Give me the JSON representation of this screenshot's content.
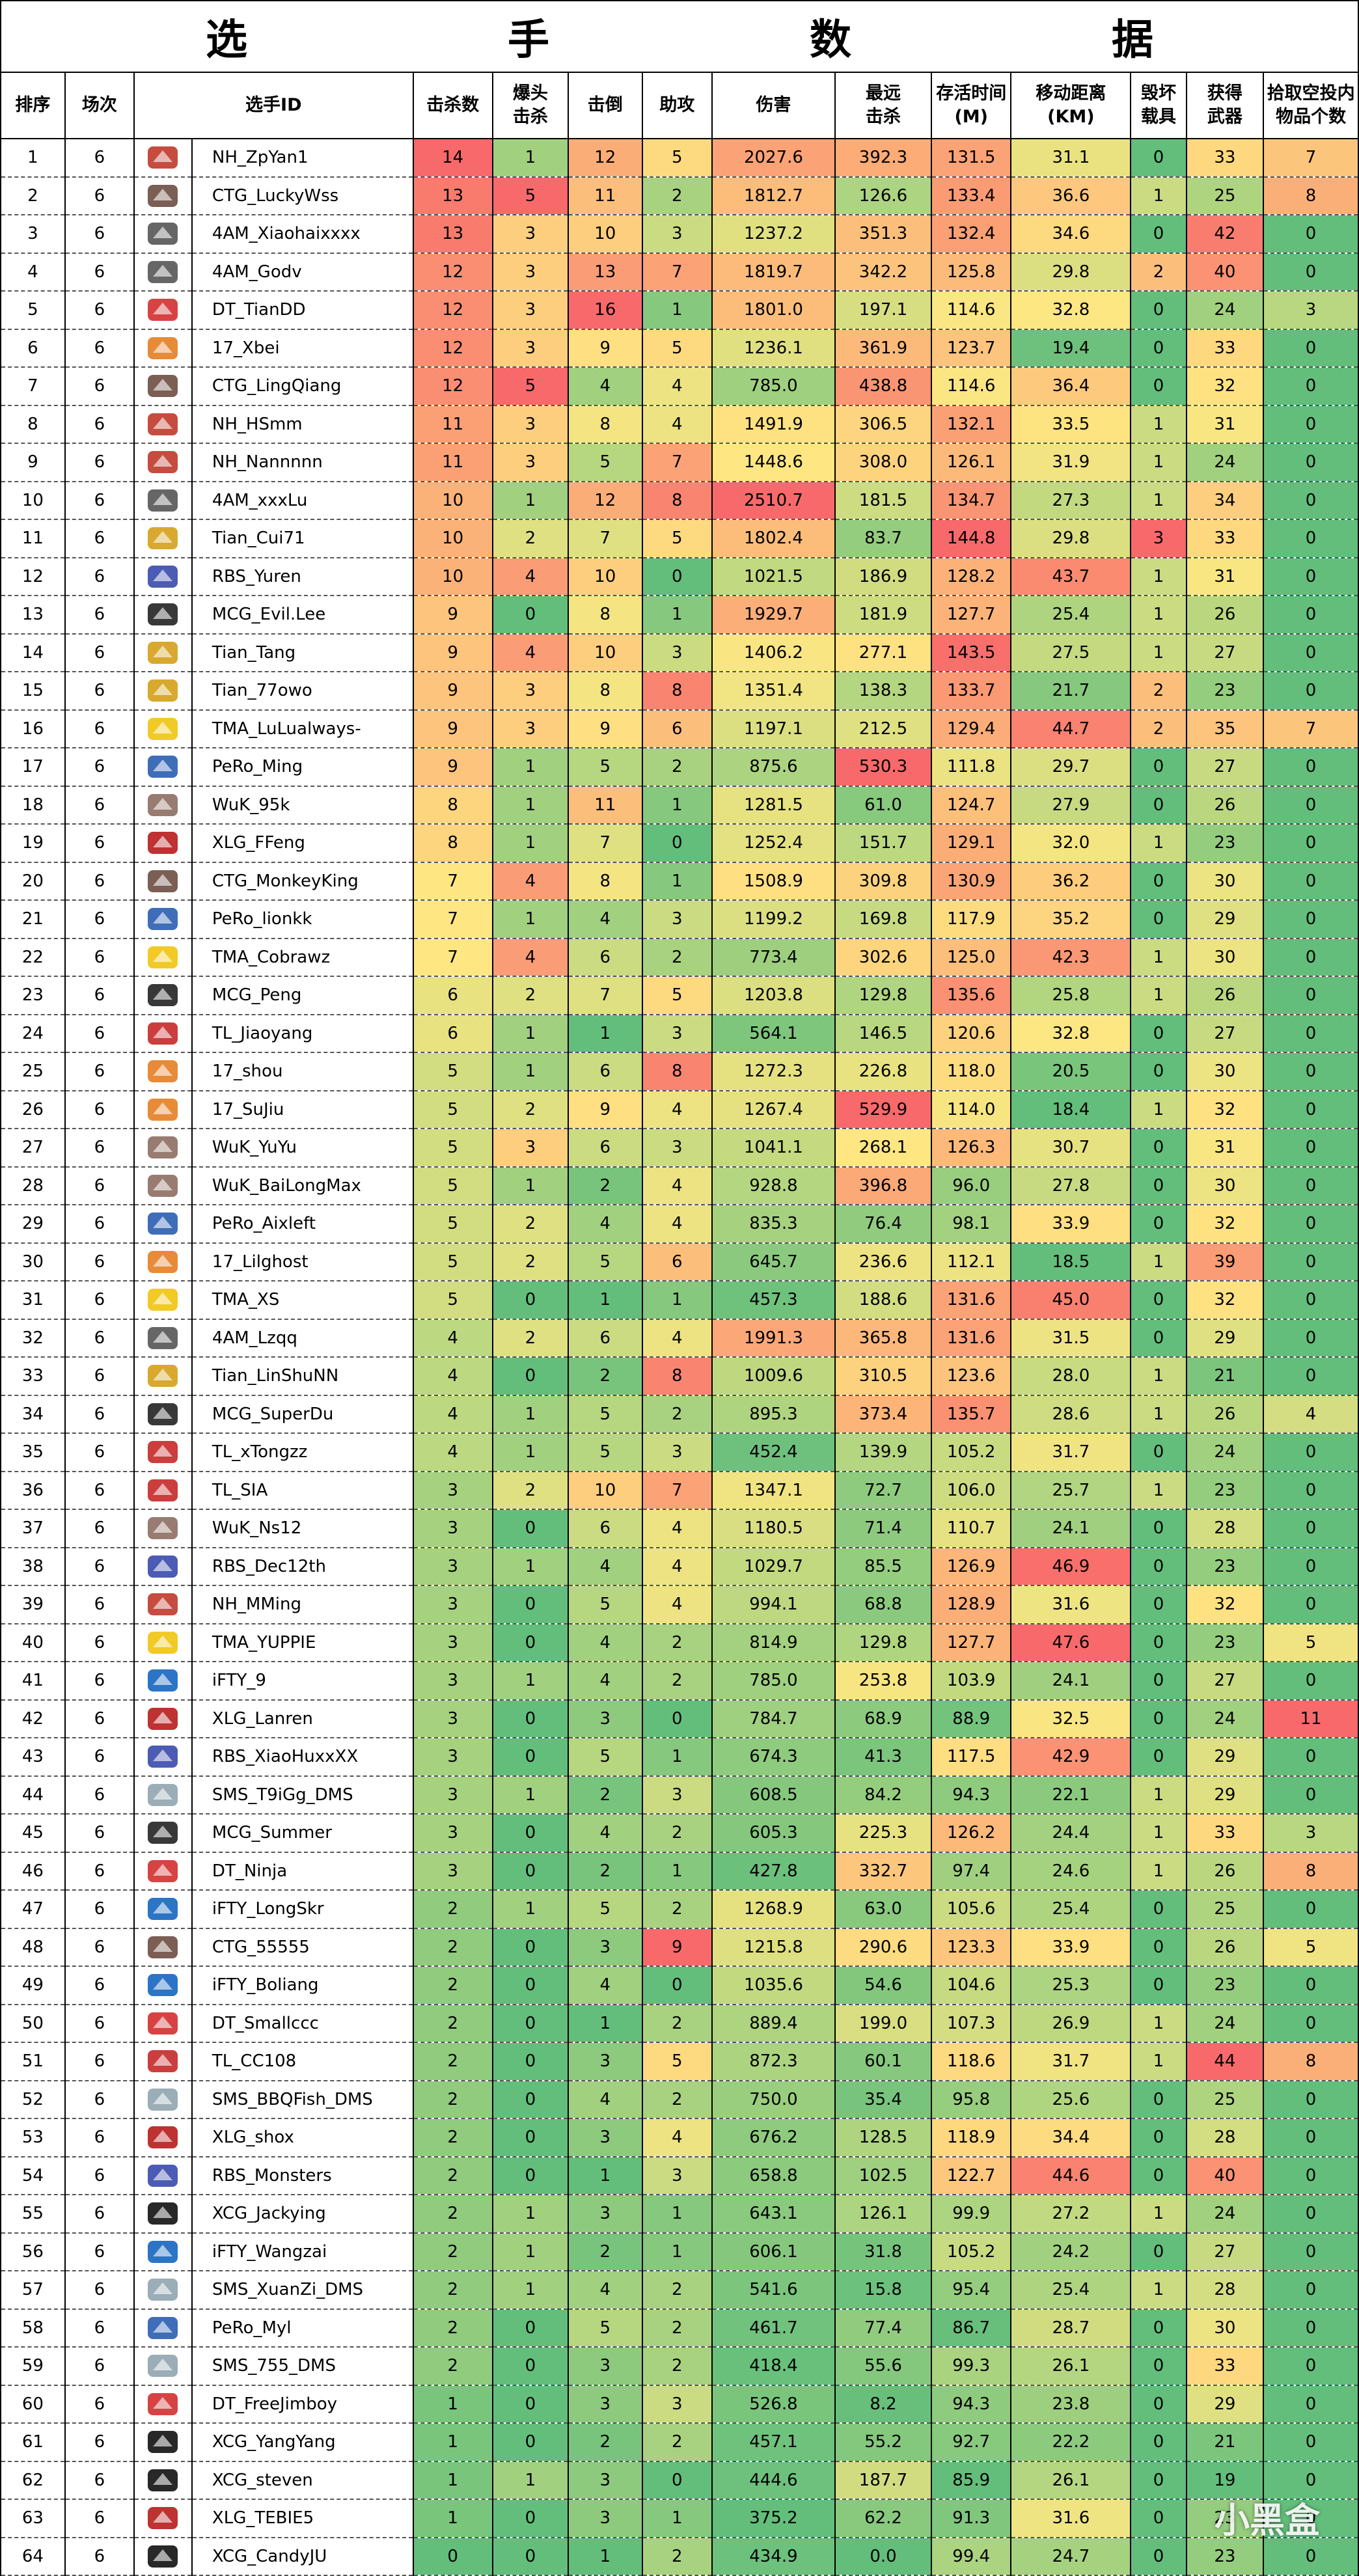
{
  "title": [
    "选",
    "手",
    "数",
    "据"
  ],
  "headers": [
    "排序",
    "场次",
    "选手ID",
    "击杀数",
    "爆头\n击杀",
    "击倒",
    "助攻",
    "伤害",
    "最远\n击杀",
    "存活时间\n(M)",
    "移动距离\n(KM)",
    "毁坏\n载具",
    "获得\n武器",
    "拾取空投内\n物品个数"
  ],
  "watermark": "小黑盒",
  "colors": {
    "red": "#f8696b",
    "orange": "#fba977",
    "yellow": "#fee782",
    "lgreen": "#b1d580",
    "green": "#63be7b"
  },
  "rows": [
    [
      "1",
      "6",
      "NH_ZpYan1",
      "14",
      "1",
      "12",
      "5",
      "2027.6",
      "392.3",
      "131.5",
      "31.1",
      "0",
      "33",
      "7"
    ],
    [
      "2",
      "6",
      "CTG_LuckyWss",
      "13",
      "5",
      "11",
      "2",
      "1812.7",
      "126.6",
      "133.4",
      "36.6",
      "1",
      "25",
      "8"
    ],
    [
      "3",
      "6",
      "4AM_Xiaohaixxxx",
      "13",
      "3",
      "10",
      "3",
      "1237.2",
      "351.3",
      "132.4",
      "34.6",
      "0",
      "42",
      "0"
    ],
    [
      "4",
      "6",
      "4AM_Godv",
      "12",
      "3",
      "13",
      "7",
      "1819.7",
      "342.2",
      "125.8",
      "29.8",
      "2",
      "40",
      "0"
    ],
    [
      "5",
      "6",
      "DT_TianDD",
      "12",
      "3",
      "16",
      "1",
      "1801.0",
      "197.1",
      "114.6",
      "32.8",
      "0",
      "24",
      "3"
    ],
    [
      "6",
      "6",
      "17_Xbei",
      "12",
      "3",
      "9",
      "5",
      "1236.1",
      "361.9",
      "123.7",
      "19.4",
      "0",
      "33",
      "0"
    ],
    [
      "7",
      "6",
      "CTG_LingQiang",
      "12",
      "5",
      "4",
      "4",
      "785.0",
      "438.8",
      "114.6",
      "36.4",
      "0",
      "32",
      "0"
    ],
    [
      "8",
      "6",
      "NH_HSmm",
      "11",
      "3",
      "8",
      "4",
      "1491.9",
      "306.5",
      "132.1",
      "33.5",
      "1",
      "31",
      "0"
    ],
    [
      "9",
      "6",
      "NH_Nannnnn",
      "11",
      "3",
      "5",
      "7",
      "1448.6",
      "308.0",
      "126.1",
      "31.9",
      "1",
      "24",
      "0"
    ],
    [
      "10",
      "6",
      "4AM_xxxLu",
      "10",
      "1",
      "12",
      "8",
      "2510.7",
      "181.5",
      "134.7",
      "27.3",
      "1",
      "34",
      "0"
    ],
    [
      "11",
      "6",
      "Tian_Cui71",
      "10",
      "2",
      "7",
      "5",
      "1802.4",
      "83.7",
      "144.8",
      "29.8",
      "3",
      "33",
      "0"
    ],
    [
      "12",
      "6",
      "RBS_Yuren",
      "10",
      "4",
      "10",
      "0",
      "1021.5",
      "186.9",
      "128.2",
      "43.7",
      "1",
      "31",
      "0"
    ],
    [
      "13",
      "6",
      "MCG_Evil.Lee",
      "9",
      "0",
      "8",
      "1",
      "1929.7",
      "181.9",
      "127.7",
      "25.4",
      "1",
      "26",
      "0"
    ],
    [
      "14",
      "6",
      "Tian_Tang",
      "9",
      "4",
      "10",
      "3",
      "1406.2",
      "277.1",
      "143.5",
      "27.5",
      "1",
      "27",
      "0"
    ],
    [
      "15",
      "6",
      "Tian_77owo",
      "9",
      "3",
      "8",
      "8",
      "1351.4",
      "138.3",
      "133.7",
      "21.7",
      "2",
      "23",
      "0"
    ],
    [
      "16",
      "6",
      "TMA_LuLualways-",
      "9",
      "3",
      "9",
      "6",
      "1197.1",
      "212.5",
      "129.4",
      "44.7",
      "2",
      "35",
      "7"
    ],
    [
      "17",
      "6",
      "PeRo_Ming",
      "9",
      "1",
      "5",
      "2",
      "875.6",
      "530.3",
      "111.8",
      "29.7",
      "0",
      "27",
      "0"
    ],
    [
      "18",
      "6",
      "WuK_95k",
      "8",
      "1",
      "11",
      "1",
      "1281.5",
      "61.0",
      "124.7",
      "27.9",
      "0",
      "26",
      "0"
    ],
    [
      "19",
      "6",
      "XLG_FFeng",
      "8",
      "1",
      "7",
      "0",
      "1252.4",
      "151.7",
      "129.1",
      "32.0",
      "1",
      "23",
      "0"
    ],
    [
      "20",
      "6",
      "CTG_MonkeyKing",
      "7",
      "4",
      "8",
      "1",
      "1508.9",
      "309.8",
      "130.9",
      "36.2",
      "0",
      "30",
      "0"
    ],
    [
      "21",
      "6",
      "PeRo_lionkk",
      "7",
      "1",
      "4",
      "3",
      "1199.2",
      "169.8",
      "117.9",
      "35.2",
      "0",
      "29",
      "0"
    ],
    [
      "22",
      "6",
      "TMA_Cobrawz",
      "7",
      "4",
      "6",
      "2",
      "773.4",
      "302.6",
      "125.0",
      "42.3",
      "1",
      "30",
      "0"
    ],
    [
      "23",
      "6",
      "MCG_Peng",
      "6",
      "2",
      "7",
      "5",
      "1203.8",
      "129.8",
      "135.6",
      "25.8",
      "1",
      "26",
      "0"
    ],
    [
      "24",
      "6",
      "TL_Jiaoyang",
      "6",
      "1",
      "1",
      "3",
      "564.1",
      "146.5",
      "120.6",
      "32.8",
      "0",
      "27",
      "0"
    ],
    [
      "25",
      "6",
      "17_shou",
      "5",
      "1",
      "6",
      "8",
      "1272.3",
      "226.8",
      "118.0",
      "20.5",
      "0",
      "30",
      "0"
    ],
    [
      "26",
      "6",
      "17_SuJiu",
      "5",
      "2",
      "9",
      "4",
      "1267.4",
      "529.9",
      "114.0",
      "18.4",
      "1",
      "32",
      "0"
    ],
    [
      "27",
      "6",
      "WuK_YuYu",
      "5",
      "3",
      "6",
      "3",
      "1041.1",
      "268.1",
      "126.3",
      "30.7",
      "0",
      "31",
      "0"
    ],
    [
      "28",
      "6",
      "WuK_BaiLongMax",
      "5",
      "1",
      "2",
      "4",
      "928.8",
      "396.8",
      "96.0",
      "27.8",
      "0",
      "30",
      "0"
    ],
    [
      "29",
      "6",
      "PeRo_Aixleft",
      "5",
      "2",
      "4",
      "4",
      "835.3",
      "76.4",
      "98.1",
      "33.9",
      "0",
      "32",
      "0"
    ],
    [
      "30",
      "6",
      "17_Lilghost",
      "5",
      "2",
      "5",
      "6",
      "645.7",
      "236.6",
      "112.1",
      "18.5",
      "1",
      "39",
      "0"
    ],
    [
      "31",
      "6",
      "TMA_XS",
      "5",
      "0",
      "1",
      "1",
      "457.3",
      "188.6",
      "131.6",
      "45.0",
      "0",
      "32",
      "0"
    ],
    [
      "32",
      "6",
      "4AM_Lzqq",
      "4",
      "2",
      "6",
      "4",
      "1991.3",
      "365.8",
      "131.6",
      "31.5",
      "0",
      "29",
      "0"
    ],
    [
      "33",
      "6",
      "Tian_LinShuNN",
      "4",
      "0",
      "2",
      "8",
      "1009.6",
      "310.5",
      "123.6",
      "28.0",
      "1",
      "21",
      "0"
    ],
    [
      "34",
      "6",
      "MCG_SuperDu",
      "4",
      "1",
      "5",
      "2",
      "895.3",
      "373.4",
      "135.7",
      "28.6",
      "1",
      "26",
      "4"
    ],
    [
      "35",
      "6",
      "TL_xTongzz",
      "4",
      "1",
      "5",
      "3",
      "452.4",
      "139.9",
      "105.2",
      "31.7",
      "0",
      "24",
      "0"
    ],
    [
      "36",
      "6",
      "TL_SIA",
      "3",
      "2",
      "10",
      "7",
      "1347.1",
      "72.7",
      "106.0",
      "25.7",
      "1",
      "23",
      "0"
    ],
    [
      "37",
      "6",
      "WuK_Ns12",
      "3",
      "0",
      "6",
      "4",
      "1180.5",
      "71.4",
      "110.7",
      "24.1",
      "0",
      "28",
      "0"
    ],
    [
      "38",
      "6",
      "RBS_Dec12th",
      "3",
      "1",
      "4",
      "4",
      "1029.7",
      "85.5",
      "126.9",
      "46.9",
      "0",
      "23",
      "0"
    ],
    [
      "39",
      "6",
      "NH_MMing",
      "3",
      "0",
      "5",
      "4",
      "994.1",
      "68.8",
      "128.9",
      "31.6",
      "0",
      "32",
      "0"
    ],
    [
      "40",
      "6",
      "TMA_YUPPIE",
      "3",
      "0",
      "4",
      "2",
      "814.9",
      "129.8",
      "127.7",
      "47.6",
      "0",
      "23",
      "5"
    ],
    [
      "41",
      "6",
      "iFTY_9",
      "3",
      "1",
      "4",
      "2",
      "785.0",
      "253.8",
      "103.9",
      "24.1",
      "0",
      "27",
      "0"
    ],
    [
      "42",
      "6",
      "XLG_Lanren",
      "3",
      "0",
      "3",
      "0",
      "784.7",
      "68.9",
      "88.9",
      "32.5",
      "0",
      "24",
      "11"
    ],
    [
      "43",
      "6",
      "RBS_XiaoHuxxXX",
      "3",
      "0",
      "5",
      "1",
      "674.3",
      "41.3",
      "117.5",
      "42.9",
      "0",
      "29",
      "0"
    ],
    [
      "44",
      "6",
      "SMS_T9iGg_DMS",
      "3",
      "1",
      "2",
      "3",
      "608.5",
      "84.2",
      "94.3",
      "22.1",
      "1",
      "29",
      "0"
    ],
    [
      "45",
      "6",
      "MCG_Summer",
      "3",
      "0",
      "4",
      "2",
      "605.3",
      "225.3",
      "126.2",
      "24.4",
      "1",
      "33",
      "3"
    ],
    [
      "46",
      "6",
      "DT_Ninja",
      "3",
      "0",
      "2",
      "1",
      "427.8",
      "332.7",
      "97.4",
      "24.6",
      "1",
      "26",
      "8"
    ],
    [
      "47",
      "6",
      "iFTY_LongSkr",
      "2",
      "1",
      "5",
      "2",
      "1268.9",
      "63.0",
      "105.6",
      "25.4",
      "0",
      "25",
      "0"
    ],
    [
      "48",
      "6",
      "CTG_55555",
      "2",
      "0",
      "3",
      "9",
      "1215.8",
      "290.6",
      "123.3",
      "33.9",
      "0",
      "26",
      "5"
    ],
    [
      "49",
      "6",
      "iFTY_Boliang",
      "2",
      "0",
      "4",
      "0",
      "1035.6",
      "54.6",
      "104.6",
      "25.3",
      "0",
      "23",
      "0"
    ],
    [
      "50",
      "6",
      "DT_Smallccc",
      "2",
      "0",
      "1",
      "2",
      "889.4",
      "199.0",
      "107.3",
      "26.9",
      "1",
      "24",
      "0"
    ],
    [
      "51",
      "6",
      "TL_CC108",
      "2",
      "0",
      "3",
      "5",
      "872.3",
      "60.1",
      "118.6",
      "31.7",
      "1",
      "44",
      "8"
    ],
    [
      "52",
      "6",
      "SMS_BBQFish_DMS",
      "2",
      "0",
      "4",
      "2",
      "750.0",
      "35.4",
      "95.8",
      "25.6",
      "0",
      "25",
      "0"
    ],
    [
      "53",
      "6",
      "XLG_shox",
      "2",
      "0",
      "3",
      "4",
      "676.2",
      "128.5",
      "118.9",
      "34.4",
      "0",
      "28",
      "0"
    ],
    [
      "54",
      "6",
      "RBS_Monsters",
      "2",
      "0",
      "1",
      "3",
      "658.8",
      "102.5",
      "122.7",
      "44.6",
      "0",
      "40",
      "0"
    ],
    [
      "55",
      "6",
      "XCG_Jackying",
      "2",
      "1",
      "3",
      "1",
      "643.1",
      "126.1",
      "99.9",
      "27.2",
      "1",
      "24",
      "0"
    ],
    [
      "56",
      "6",
      "iFTY_Wangzai",
      "2",
      "1",
      "2",
      "1",
      "606.1",
      "31.8",
      "105.2",
      "24.2",
      "0",
      "27",
      "0"
    ],
    [
      "57",
      "6",
      "SMS_XuanZi_DMS",
      "2",
      "1",
      "4",
      "2",
      "541.6",
      "15.8",
      "95.4",
      "25.4",
      "1",
      "28",
      "0"
    ],
    [
      "58",
      "6",
      "PeRo_Myl",
      "2",
      "0",
      "5",
      "2",
      "461.7",
      "77.4",
      "86.7",
      "28.7",
      "0",
      "30",
      "0"
    ],
    [
      "59",
      "6",
      "SMS_755_DMS",
      "2",
      "0",
      "3",
      "2",
      "418.4",
      "55.6",
      "99.3",
      "26.1",
      "0",
      "33",
      "0"
    ],
    [
      "60",
      "6",
      "DT_FreeJimboy",
      "1",
      "0",
      "3",
      "3",
      "526.8",
      "8.2",
      "94.3",
      "23.8",
      "0",
      "29",
      "0"
    ],
    [
      "61",
      "6",
      "XCG_YangYang",
      "1",
      "0",
      "2",
      "2",
      "457.1",
      "55.2",
      "92.7",
      "22.2",
      "0",
      "21",
      "0"
    ],
    [
      "62",
      "6",
      "XCG_steven",
      "1",
      "1",
      "3",
      "0",
      "444.6",
      "187.7",
      "85.9",
      "26.1",
      "0",
      "19",
      "0"
    ],
    [
      "63",
      "6",
      "XLG_TEBIE5",
      "1",
      "0",
      "3",
      "1",
      "375.2",
      "62.2",
      "91.3",
      "31.6",
      "0",
      "23",
      "0"
    ],
    [
      "64",
      "6",
      "XCG_CandyJU",
      "0",
      "0",
      "1",
      "2",
      "434.9",
      "0.0",
      "99.4",
      "24.7",
      "0",
      "23",
      "0"
    ]
  ]
}
